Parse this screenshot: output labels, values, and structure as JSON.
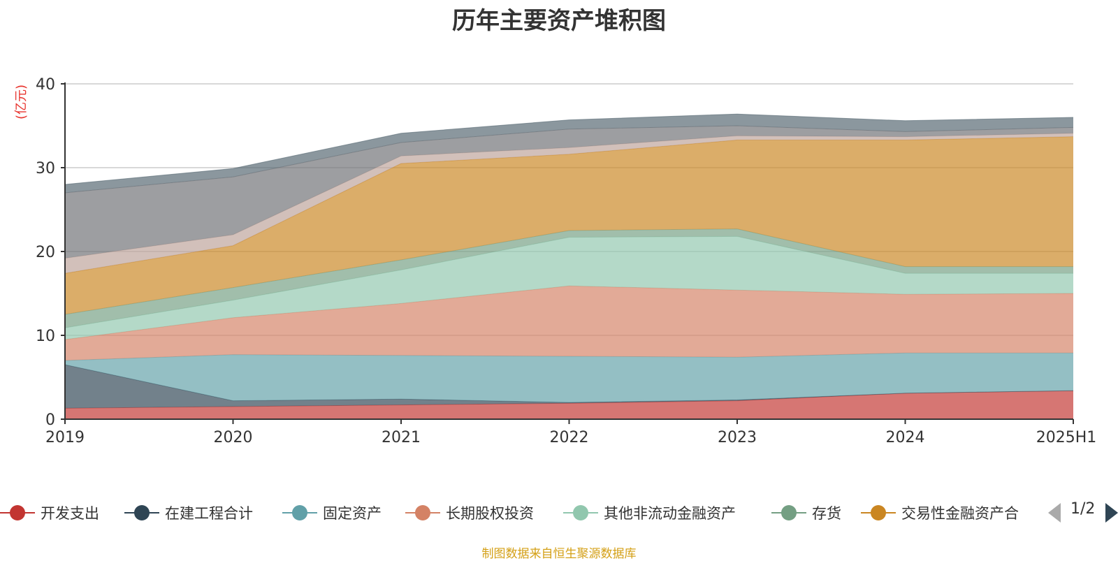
{
  "chart_data": {
    "type": "area",
    "stacked": true,
    "title": "历年主要资产堆积图",
    "ylabel": "(亿元)",
    "ylim": [
      0,
      40
    ],
    "yticks": [
      0,
      10,
      20,
      30,
      40
    ],
    "grid": true,
    "categories": [
      "2019",
      "2020",
      "2021",
      "2022",
      "2023",
      "2024",
      "2025H1"
    ],
    "series": [
      {
        "name": "开发支出",
        "color": "#c23531",
        "values": [
          1.3,
          1.5,
          1.7,
          1.9,
          2.2,
          3.1,
          3.4
        ]
      },
      {
        "name": "在建工程合计",
        "color": "#2f4554",
        "values": [
          5.2,
          0.7,
          0.7,
          0.1,
          0.1,
          0.0,
          0.0
        ]
      },
      {
        "name": "固定资产",
        "color": "#61a0a8",
        "values": [
          0.5,
          5.5,
          5.2,
          5.5,
          5.1,
          4.8,
          4.5
        ]
      },
      {
        "name": "长期股权投资",
        "color": "#d48265",
        "values": [
          2.5,
          4.4,
          6.2,
          8.4,
          8.0,
          7.0,
          7.1
        ]
      },
      {
        "name": "其他非流动金融资产",
        "color": "#91c7ae",
        "values": [
          1.4,
          2.1,
          4.0,
          5.8,
          6.4,
          2.5,
          2.4
        ]
      },
      {
        "name": "存货",
        "color": "#749f83",
        "values": [
          1.6,
          1.5,
          1.2,
          0.8,
          0.9,
          0.8,
          0.8
        ]
      },
      {
        "name": "交易性金融资产合",
        "color": "#ca8622",
        "values": [
          4.9,
          5.0,
          11.5,
          9.1,
          10.6,
          15.1,
          15.5
        ]
      },
      {
        "name": "",
        "color": "#bda29a",
        "values": [
          1.8,
          1.3,
          0.9,
          0.8,
          0.5,
          0.4,
          0.4
        ]
      },
      {
        "name": "",
        "color": "#6e7074",
        "values": [
          7.8,
          6.9,
          1.6,
          2.2,
          1.2,
          0.6,
          0.7
        ]
      },
      {
        "name": "",
        "color": "#546570",
        "values": [
          1.0,
          1.0,
          1.1,
          1.1,
          1.4,
          1.3,
          1.2
        ]
      }
    ]
  },
  "legend": {
    "items": [
      {
        "label": "开发支出",
        "color": "#c23531"
      },
      {
        "label": "在建工程合计",
        "color": "#2f4554"
      },
      {
        "label": "固定资产",
        "color": "#61a0a8"
      },
      {
        "label": "长期股权投资",
        "color": "#d48265"
      },
      {
        "label": "其他非流动金融资产",
        "color": "#91c7ae"
      },
      {
        "label": "存货",
        "color": "#749f83"
      },
      {
        "label": "交易性金融资产合",
        "color": "#ca8622"
      }
    ],
    "page": "1/2"
  },
  "source": "制图数据来自恒生聚源数据库"
}
